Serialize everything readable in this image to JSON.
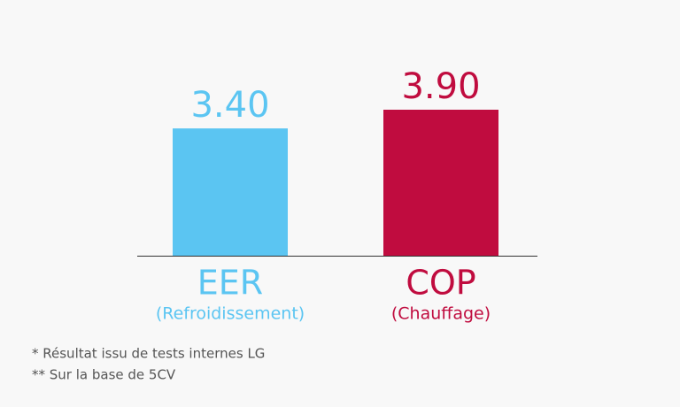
{
  "chart_data": {
    "type": "bar",
    "categories": [
      "EER",
      "COP"
    ],
    "subcategories": [
      "(Refroidissement)",
      "(Chauffage)"
    ],
    "values": [
      3.4,
      3.9
    ],
    "value_labels": [
      "3.40",
      "3.90"
    ],
    "colors": [
      "#5bc5f2",
      "#c00c3f"
    ]
  },
  "footnotes": [
    "* Résultat issu de tests internes LG",
    "** Sur la base de 5CV"
  ]
}
